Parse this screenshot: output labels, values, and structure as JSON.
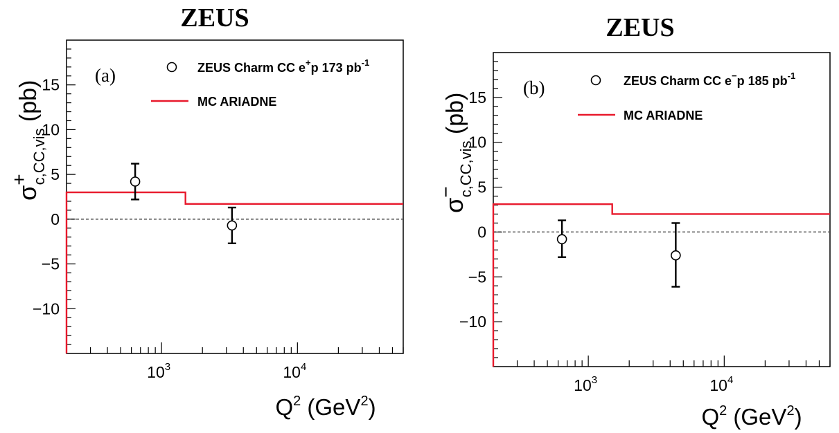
{
  "chart_data": [
    {
      "type": "scatter",
      "title": "ZEUS",
      "panel_label": "(a)",
      "ylabel": {
        "main": "σ",
        "sup": "+",
        "sub": "c,CC,vis",
        "unit": "(pb)"
      },
      "xlabel": {
        "main": "Q",
        "sup": "2",
        "unit_pre": "(GeV",
        "unit_sup": "2",
        "unit_post": ")"
      },
      "x_scale": "log",
      "xlim": [
        200,
        60000
      ],
      "ylim": [
        -15,
        20
      ],
      "y_ticks": [
        -10,
        -5,
        0,
        5,
        10,
        15
      ],
      "y_tick_labels": [
        "−10",
        "−5",
        "0",
        "5",
        "10",
        "15"
      ],
      "x_ticks": [
        {
          "value": 1000,
          "base": "10",
          "exp": "3"
        },
        {
          "value": 10000,
          "base": "10",
          "exp": "4"
        }
      ],
      "zero_line": true,
      "legend": {
        "placement": "top-right",
        "data_label": {
          "pre": "ZEUS Charm CC e",
          "sup": "+",
          "mid": "p 173 pb",
          "sup2": "-1"
        },
        "mc_label": "MC ARIADNE"
      },
      "series": [
        {
          "name": "ZEUS Charm CC e+p 173 pb-1",
          "kind": "points",
          "points": [
            {
              "x": 640,
              "y": 4.2,
              "ylow": 2.2,
              "yhigh": 6.2
            },
            {
              "x": 3300,
              "y": -0.7,
              "ylow": -2.7,
              "yhigh": 1.3
            }
          ]
        },
        {
          "name": "MC ARIADNE",
          "kind": "step",
          "color": "#e8192c",
          "bins": [
            {
              "x0": 200,
              "x1": 1500,
              "y": 3.0
            },
            {
              "x0": 1500,
              "x1": 60000,
              "y": 1.7
            }
          ]
        }
      ]
    },
    {
      "type": "scatter",
      "title": "ZEUS",
      "panel_label": "(b)",
      "ylabel": {
        "main": "σ",
        "sup": "−",
        "sub": "c,CC,vis",
        "unit": "(pb)"
      },
      "xlabel": {
        "main": "Q",
        "sup": "2",
        "unit_pre": "(GeV",
        "unit_sup": "2",
        "unit_post": ")"
      },
      "x_scale": "log",
      "xlim": [
        200,
        60000
      ],
      "ylim": [
        -15,
        20
      ],
      "y_ticks": [
        -10,
        -5,
        0,
        5,
        10,
        15
      ],
      "y_tick_labels": [
        "−10",
        "−5",
        "0",
        "5",
        "10",
        "15"
      ],
      "x_ticks": [
        {
          "value": 1000,
          "base": "10",
          "exp": "3"
        },
        {
          "value": 10000,
          "base": "10",
          "exp": "4"
        }
      ],
      "zero_line": true,
      "legend": {
        "placement": "top-right",
        "data_label": {
          "pre": "ZEUS Charm CC e",
          "sup": "−",
          "mid": "p 185 pb",
          "sup2": "-1"
        },
        "mc_label": "MC ARIADNE"
      },
      "series": [
        {
          "name": "ZEUS Charm CC e−p 185 pb-1",
          "kind": "points",
          "points": [
            {
              "x": 640,
              "y": -0.8,
              "ylow": -2.8,
              "yhigh": 1.3
            },
            {
              "x": 4400,
              "y": -2.6,
              "ylow": -6.1,
              "yhigh": 1.0
            }
          ]
        },
        {
          "name": "MC ARIADNE",
          "kind": "step",
          "color": "#e8192c",
          "bins": [
            {
              "x0": 200,
              "x1": 1500,
              "y": 3.1
            },
            {
              "x0": 1500,
              "x1": 60000,
              "y": 2.0
            }
          ]
        }
      ]
    }
  ]
}
